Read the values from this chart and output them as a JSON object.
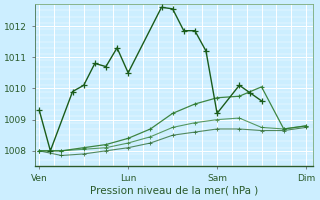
{
  "xlabel": "Pression niveau de la mer( hPa )",
  "background_color": "#cceeff",
  "grid_color": "#ffffff",
  "line_color_dark": "#1a5c1a",
  "line_color_mid": "#2d7a2d",
  "line_color_light": "#4a9a4a",
  "ylim": [
    1007.5,
    1012.7
  ],
  "yticks": [
    1008,
    1009,
    1010,
    1011,
    1012
  ],
  "xtick_labels": [
    "Ven",
    "Lun",
    "Sam",
    "Dim"
  ],
  "xtick_positions": [
    0,
    40,
    80,
    120
  ],
  "series1_x": [
    0,
    5,
    15,
    20,
    25,
    30,
    35,
    40,
    55,
    60,
    65,
    70,
    75,
    80,
    90,
    95,
    100,
    110,
    115,
    120
  ],
  "series1_y": [
    1009.3,
    1008.0,
    1009.9,
    1010.1,
    1010.8,
    1010.7,
    1011.3,
    1010.5,
    1012.6,
    1012.55,
    1011.85,
    1011.85,
    1011.2,
    1009.2,
    1010.1,
    1009.85,
    1009.6,
    null,
    null,
    null
  ],
  "series2_x": [
    0,
    10,
    20,
    30,
    40,
    50,
    60,
    70,
    80,
    90,
    100,
    110,
    120
  ],
  "series2_y": [
    1008.0,
    1008.0,
    1008.1,
    1008.2,
    1008.4,
    1008.7,
    1009.2,
    1009.5,
    1009.7,
    1009.75,
    1010.05,
    1008.7,
    1008.8
  ],
  "series3_x": [
    0,
    10,
    20,
    30,
    40,
    50,
    60,
    70,
    80,
    90,
    100,
    110,
    120
  ],
  "series3_y": [
    1008.0,
    1008.0,
    1008.05,
    1008.1,
    1008.25,
    1008.45,
    1008.75,
    1008.9,
    1009.0,
    1009.05,
    1008.75,
    1008.7,
    1008.8
  ],
  "series4_x": [
    0,
    10,
    20,
    30,
    40,
    50,
    60,
    70,
    80,
    90,
    100,
    110,
    120
  ],
  "series4_y": [
    1008.0,
    1007.85,
    1007.9,
    1008.0,
    1008.1,
    1008.25,
    1008.5,
    1008.6,
    1008.7,
    1008.7,
    1008.65,
    1008.65,
    1008.75
  ],
  "num_xgrid": 18,
  "num_ygrid": 5
}
